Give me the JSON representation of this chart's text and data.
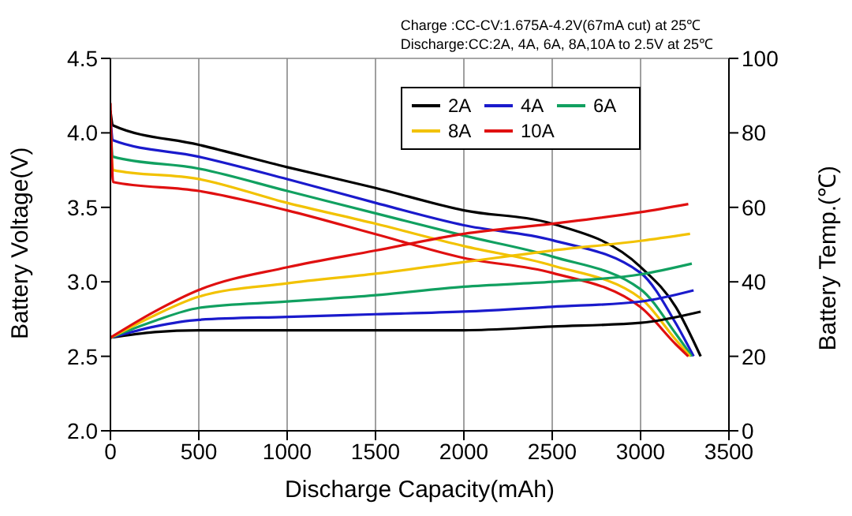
{
  "chart_data": {
    "type": "line",
    "xlabel": "Discharge Capacity(mAh)",
    "ylabel": "Battery Voltage(V)",
    "y2label": "Battery Temp.(℃)",
    "annotations": [
      "Charge :CC-CV:1.675A-4.2V(67mA cut) at 25℃",
      "Discharge:CC:2A, 4A, 6A, 8A,10A to 2.5V at 25℃"
    ],
    "xlim": [
      0,
      3500
    ],
    "xticks": [
      0,
      500,
      1000,
      1500,
      2000,
      2500,
      3000,
      3500
    ],
    "ylim": [
      2.0,
      4.5
    ],
    "yticks": [
      {
        "value": 2.0,
        "label": "2.0"
      },
      {
        "value": 2.5,
        "label": "2.5"
      },
      {
        "value": 3.0,
        "label": "3.0"
      },
      {
        "value": 3.5,
        "label": "3.5"
      },
      {
        "value": 4.0,
        "label": "4.0"
      },
      {
        "value": 4.5,
        "label": "4.5"
      }
    ],
    "y2lim": [
      0,
      100
    ],
    "y2ticks": [
      0,
      20,
      40,
      60,
      80,
      100
    ],
    "grid": true,
    "legend": "top right",
    "marker": "none",
    "line_style": "solid",
    "series": [
      {
        "name": "2A",
        "color": "#000000",
        "x": [
          0,
          15,
          500,
          1000,
          1500,
          2000,
          2500,
          3000,
          3200,
          3340
        ],
        "values": [
          4.15,
          4.05,
          3.92,
          3.77,
          3.63,
          3.48,
          3.39,
          3.1,
          2.83,
          2.5
        ]
      },
      {
        "name": "4A",
        "color": "#1a1acc",
        "x": [
          0,
          15,
          500,
          1000,
          1500,
          2000,
          2500,
          3000,
          3200,
          3300
        ],
        "values": [
          4.1,
          3.95,
          3.84,
          3.69,
          3.53,
          3.38,
          3.28,
          3.06,
          2.72,
          2.5
        ]
      },
      {
        "name": "6A",
        "color": "#11a060",
        "x": [
          0,
          15,
          500,
          1000,
          1500,
          2000,
          2500,
          3000,
          3200,
          3290
        ],
        "values": [
          4.05,
          3.84,
          3.76,
          3.61,
          3.46,
          3.31,
          3.17,
          2.95,
          2.65,
          2.5
        ]
      },
      {
        "name": "8A",
        "color": "#f2c200",
        "x": [
          0,
          15,
          500,
          1000,
          1500,
          2000,
          2500,
          3000,
          3200,
          3280
        ],
        "values": [
          4.0,
          3.75,
          3.69,
          3.53,
          3.39,
          3.24,
          3.11,
          2.89,
          2.61,
          2.5
        ]
      },
      {
        "name": "10A",
        "color": "#e01010",
        "x": [
          0,
          15,
          500,
          1000,
          1500,
          2000,
          2500,
          3000,
          3200,
          3270
        ],
        "values": [
          4.2,
          3.67,
          3.61,
          3.48,
          3.32,
          3.16,
          3.06,
          2.83,
          2.58,
          2.5
        ]
      },
      {
        "color": "#000000",
        "axis": "y2",
        "x": [
          0,
          250,
          500,
          1000,
          1500,
          2000,
          2500,
          3000,
          3340
        ],
        "values": [
          25,
          26.5,
          27,
          27,
          27,
          27,
          28,
          29,
          32
        ]
      },
      {
        "color": "#1a1acc",
        "axis": "y2",
        "x": [
          0,
          250,
          500,
          1000,
          1500,
          2000,
          2500,
          3000,
          3300
        ],
        "values": [
          25,
          28,
          29.8,
          30.6,
          31.3,
          32,
          33.3,
          34.7,
          37.7
        ]
      },
      {
        "color": "#11a060",
        "axis": "y2",
        "x": [
          0,
          250,
          500,
          1000,
          1500,
          2000,
          2500,
          3000,
          3290
        ],
        "values": [
          25,
          29.5,
          33,
          34.7,
          36.4,
          38.7,
          40,
          42,
          44.9
        ]
      },
      {
        "color": "#f2c200",
        "axis": "y2",
        "x": [
          0,
          250,
          500,
          1000,
          1500,
          2000,
          2500,
          3000,
          3280
        ],
        "values": [
          25,
          31,
          36,
          39.6,
          42.2,
          45.3,
          48.4,
          51,
          52.9
        ]
      },
      {
        "color": "#e01010",
        "axis": "y2",
        "x": [
          0,
          250,
          500,
          1000,
          1500,
          2000,
          2500,
          3000,
          3270
        ],
        "values": [
          25,
          32,
          37.8,
          43.9,
          48.4,
          52.9,
          55.6,
          58.7,
          60.9
        ]
      }
    ]
  }
}
